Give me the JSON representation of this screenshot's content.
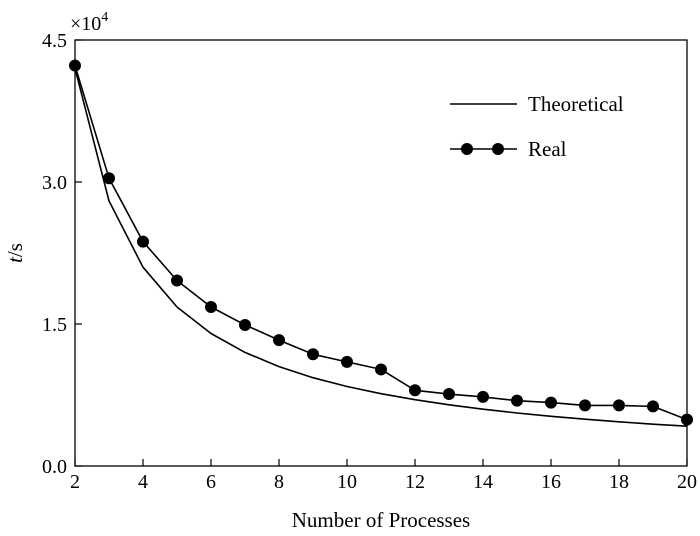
{
  "chart_data": {
    "type": "line",
    "xlabel": "Number of Processes",
    "ylabel_italic": "t",
    "ylabel_unit": "/s",
    "y_multiplier_base": "×10",
    "y_multiplier_exp": "4",
    "xlim": [
      2,
      20
    ],
    "ylim": [
      0,
      4.5
    ],
    "x_ticks": [
      2,
      4,
      6,
      8,
      10,
      12,
      14,
      16,
      18,
      20
    ],
    "y_ticks": [
      0.0,
      1.5,
      3.0,
      4.5
    ],
    "x_tick_labels": [
      "2",
      "4",
      "6",
      "8",
      "10",
      "12",
      "14",
      "16",
      "18",
      "20"
    ],
    "y_tick_labels": [
      "0.0",
      "1.5",
      "3.0",
      "4.5"
    ],
    "grid": false,
    "legend_position": "top-right",
    "x": [
      2,
      3,
      4,
      5,
      6,
      7,
      8,
      9,
      10,
      11,
      12,
      13,
      14,
      15,
      16,
      17,
      18,
      19,
      20
    ],
    "series": [
      {
        "name": "Theoretical",
        "marker": "none",
        "color": "#000000",
        "values": [
          4.2,
          2.8,
          2.1,
          1.68,
          1.4,
          1.2,
          1.05,
          0.933,
          0.84,
          0.764,
          0.7,
          0.646,
          0.6,
          0.56,
          0.525,
          0.494,
          0.467,
          0.442,
          0.42
        ]
      },
      {
        "name": "Real",
        "marker": "circle",
        "color": "#000000",
        "values": [
          4.23,
          3.04,
          2.37,
          1.96,
          1.68,
          1.49,
          1.33,
          1.18,
          1.1,
          1.02,
          0.8,
          0.76,
          0.73,
          0.69,
          0.67,
          0.64,
          0.64,
          0.63,
          0.49
        ]
      }
    ]
  }
}
